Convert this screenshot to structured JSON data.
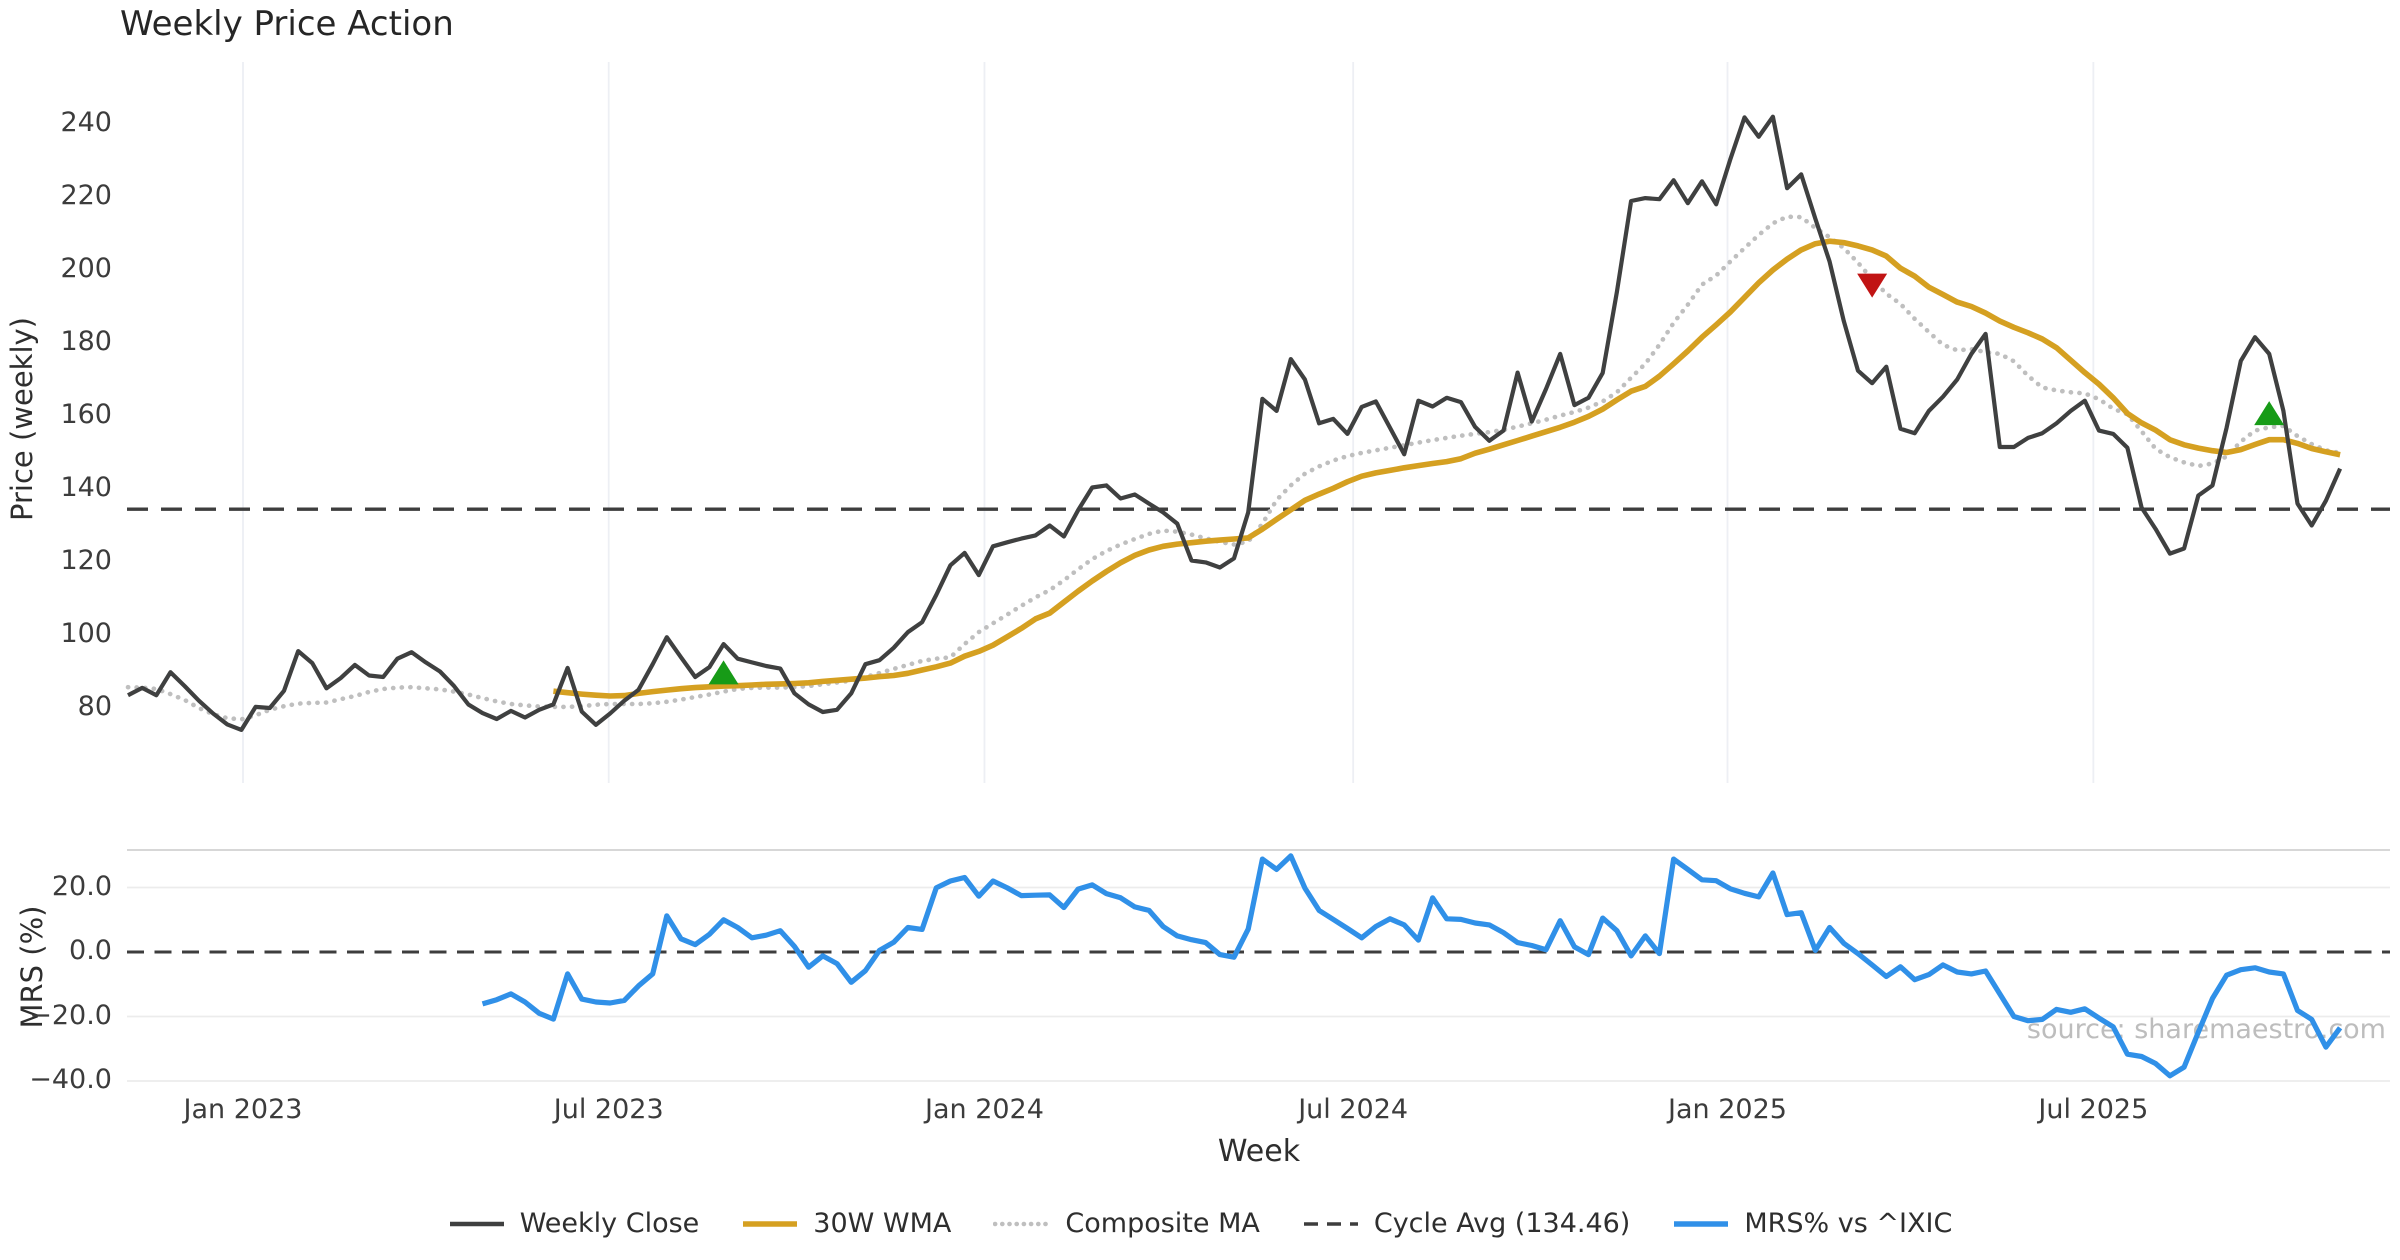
{
  "title": "Weekly Price Action",
  "source_text": "source: sharemaestro.com",
  "colors": {
    "close": "#3f4040",
    "wma": "#d5a021",
    "composite": "#bfbfbf",
    "cycle": "#3d3d3d",
    "mrs": "#3090e8",
    "grid_vertical": "#edeff4",
    "grid_horizontal": "#ececec",
    "panel_spine": "#d7d7d7",
    "marker_up": "#179b17",
    "marker_down": "#c11414",
    "text": "#3c3c3c",
    "source": "#bdbdbd"
  },
  "x_axis": {
    "label": "Week",
    "ticks": [
      {
        "label": "Jan 2023",
        "pos": 8.11
      },
      {
        "label": "Jul 2023",
        "pos": 33.9
      },
      {
        "label": "Jan 2024",
        "pos": 60.4
      },
      {
        "label": "Jul 2024",
        "pos": 86.4
      },
      {
        "label": "Jan 2025",
        "pos": 112.8
      },
      {
        "label": "Jul 2025",
        "pos": 138.6
      }
    ]
  },
  "chart_data": [
    {
      "type": "line",
      "panel": "price",
      "title": "Weekly Price Action",
      "xlabel": "Week",
      "ylabel": "Price (weekly)",
      "ylim": [
        60,
        247
      ],
      "yticks": [
        240,
        220,
        200,
        180,
        160,
        140,
        120,
        100,
        80
      ],
      "grid": "vertical-only",
      "cycle_avg": 134.46,
      "series": [
        {
          "name": "Weekly Close",
          "style": "solid",
          "color": "#3f4040",
          "values": [
            83.5,
            85.5,
            83.5,
            89.8,
            86,
            82,
            78.5,
            75.5,
            74,
            80.3,
            80,
            84.7,
            95.6,
            92.3,
            85.4,
            88.2,
            91.8,
            88.9,
            88.5,
            93.5,
            95.3,
            92.5,
            90,
            86,
            81,
            78.6,
            77,
            79.2,
            77.4,
            79.5,
            81,
            91,
            79,
            75.4,
            78.5,
            82,
            85,
            92,
            99.4,
            93.9,
            88.5,
            91.2,
            97.5,
            93.5,
            92.5,
            91.5,
            90.8,
            84,
            81,
            78.9,
            79.5,
            84,
            92,
            93.1,
            96.5,
            100.8,
            103.5,
            111,
            119.1,
            122.5,
            116.4,
            124.3,
            125.4,
            126.4,
            127.3,
            130,
            127,
            134.2,
            140.4,
            141,
            137.4,
            138.5,
            136,
            133.6,
            130.5,
            120.4,
            119.9,
            118.5,
            121,
            133.6,
            164.7,
            161.4,
            175.6,
            170,
            158,
            159.2,
            155.1,
            162.5,
            164,
            156.8,
            149.5,
            164.2,
            162.6,
            165,
            163.8,
            157,
            153.2,
            156,
            171.9,
            158.5,
            167.4,
            177,
            163,
            165,
            171.8,
            194,
            218.9,
            219.7,
            219.4,
            224.6,
            218.3,
            224.3,
            218,
            230.3,
            241.8,
            236.5,
            242,
            222.4,
            226.2,
            214,
            202.3,
            186,
            172.4,
            169,
            173.5,
            156.5,
            155.3,
            161.4,
            165.3,
            170,
            177,
            182.5,
            151.5,
            151.5,
            154,
            155.3,
            158,
            161.4,
            164.2,
            156,
            155.1,
            151.3,
            134.9,
            129,
            122.3,
            123.7,
            138.2,
            141,
            156.8,
            175.1,
            181.6,
            177,
            161.4,
            136,
            130,
            136.8,
            145.6
          ]
        },
        {
          "name": "30W WMA",
          "style": "solid",
          "color": "#d5a021",
          "values": [
            null,
            null,
            null,
            null,
            null,
            null,
            null,
            null,
            null,
            null,
            null,
            null,
            null,
            null,
            null,
            null,
            null,
            null,
            null,
            null,
            null,
            null,
            null,
            null,
            null,
            null,
            null,
            null,
            null,
            null,
            84.6,
            84.2,
            83.8,
            83.5,
            83.3,
            83.4,
            84,
            84.5,
            84.9,
            85.3,
            85.6,
            85.8,
            86,
            86.1,
            86.3,
            86.5,
            86.6,
            86.7,
            86.9,
            87.3,
            87.6,
            87.9,
            88.2,
            88.6,
            88.9,
            89.5,
            90.4,
            91.3,
            92.3,
            94.2,
            95.5,
            97.2,
            99.5,
            101.8,
            104.4,
            106,
            109,
            112,
            114.8,
            117.4,
            119.8,
            121.8,
            123.3,
            124.3,
            124.9,
            125.3,
            125.7,
            126,
            126.3,
            126.6,
            129,
            131.7,
            134.3,
            136.9,
            138.6,
            140.2,
            142,
            143.5,
            144.4,
            145.1,
            145.8,
            146.4,
            147,
            147.5,
            148.3,
            149.8,
            150.9,
            152.1,
            153.3,
            154.5,
            155.7,
            156.9,
            158.3,
            159.9,
            161.9,
            164.4,
            166.8,
            168.1,
            170.9,
            174.3,
            177.8,
            181.6,
            185,
            188.5,
            192.5,
            196.5,
            200,
            203,
            205.5,
            207.2,
            207.9,
            207.5,
            206.6,
            205.5,
            203.8,
            200.5,
            198.3,
            195.3,
            193.3,
            191.2,
            190,
            188.2,
            186,
            184.3,
            182.8,
            181.1,
            178.7,
            175.3,
            171.9,
            168.7,
            165,
            160.7,
            158.1,
            156.1,
            153.5,
            152.1,
            151.2,
            150.5,
            150,
            150.8,
            152.2,
            153.5,
            153.5,
            152.5,
            151.1,
            150.2,
            149.4
          ]
        },
        {
          "name": "Composite MA",
          "style": "dotted",
          "color": "#bfbfbf",
          "values": [
            85.7,
            85.6,
            85.2,
            83.8,
            82.2,
            80,
            78.3,
            77.2,
            76.9,
            78,
            79.5,
            80.5,
            81.2,
            81.4,
            81.5,
            82.4,
            83.3,
            84.4,
            85.2,
            85.6,
            85.7,
            85.4,
            85.1,
            84.5,
            83.7,
            82.7,
            81.8,
            81.1,
            80.7,
            80.4,
            80.3,
            80.3,
            80.5,
            80.9,
            81.1,
            81.1,
            81.1,
            81.3,
            81.7,
            82.3,
            83,
            83.7,
            84.5,
            85.2,
            85.5,
            85.6,
            85.6,
            85.7,
            86,
            86.5,
            87,
            87.5,
            88.5,
            89.6,
            90.7,
            91.8,
            92.9,
            93.5,
            93.9,
            97.5,
            100.8,
            103.2,
            105.6,
            108,
            110.3,
            112.3,
            115,
            118,
            120.8,
            123,
            124.8,
            126.3,
            127.7,
            128.6,
            128.3,
            127.5,
            126.5,
            125.5,
            124.8,
            125.6,
            130.5,
            137,
            141,
            144.2,
            146.2,
            147.8,
            149,
            149.9,
            150.6,
            151.3,
            152,
            152.7,
            153.4,
            154,
            154.6,
            155.1,
            155.6,
            156.2,
            157.1,
            158,
            159,
            160.1,
            161.1,
            162.3,
            164,
            166.5,
            170.5,
            174.3,
            179.5,
            185.5,
            190.5,
            196,
            198.5,
            202.3,
            206,
            209.6,
            212.8,
            214.6,
            214.5,
            211.5,
            209,
            206,
            202,
            197.5,
            193.5,
            190.7,
            186.6,
            183,
            179.5,
            178,
            178.3,
            177.5,
            177,
            175,
            171,
            167.8,
            167,
            166.5,
            166.2,
            164.6,
            162,
            160.5,
            155.8,
            151,
            148.7,
            147.3,
            146.3,
            147,
            148.9,
            153,
            156,
            156.9,
            157.3,
            154.5,
            152.3,
            150.6,
            149.9
          ]
        },
        {
          "name": "Cycle Avg (134.46)",
          "style": "dashed",
          "color": "#3d3d3d",
          "constant": 134.46
        }
      ],
      "markers": [
        {
          "index": 42,
          "value": 89.5,
          "shape": "triangle-up",
          "color": "#179b17"
        },
        {
          "index": 123,
          "value": 196.0,
          "shape": "triangle-down",
          "color": "#c11414"
        },
        {
          "index": 151,
          "value": 160.5,
          "shape": "triangle-up",
          "color": "#179b17"
        }
      ]
    },
    {
      "type": "line",
      "panel": "mrs",
      "ylabel": "MRS (%)",
      "ylim": [
        -41.5,
        31.6
      ],
      "yticks": [
        20.0,
        0.0,
        -20.0,
        -40.0
      ],
      "ytick_labels": [
        "20.0",
        "0.0",
        "−20.0",
        "−40.0"
      ],
      "grid": "horizontal-only",
      "zero_line_dashed": true,
      "series": [
        {
          "name": "MRS% vs ^IXIC",
          "style": "solid",
          "color": "#3090e8",
          "values": [
            null,
            null,
            null,
            null,
            null,
            null,
            null,
            null,
            null,
            null,
            null,
            null,
            null,
            null,
            null,
            null,
            null,
            null,
            null,
            null,
            null,
            null,
            null,
            null,
            null,
            -16.1,
            -14.8,
            -13,
            -15.5,
            -19,
            -20.8,
            -6.8,
            -14.6,
            -15.5,
            -15.8,
            -15,
            -10.5,
            -6.8,
            11.2,
            4.1,
            2.3,
            5.5,
            10,
            7.6,
            4.4,
            5.2,
            6.6,
            1.7,
            -4.7,
            -1.2,
            -3.6,
            -9.4,
            -5.8,
            0.5,
            3,
            7.6,
            7,
            19.9,
            22,
            23.1,
            17.3,
            22,
            19.9,
            17.5,
            17.6,
            17.7,
            13.8,
            19.5,
            20.8,
            18.1,
            16.8,
            14,
            12.9,
            7.9,
            5,
            3.8,
            2.9,
            -0.8,
            -1.6,
            7.1,
            28.8,
            25.6,
            29.8,
            19.8,
            12.9,
            10.1,
            7.3,
            4.4,
            7.9,
            10.3,
            8.4,
            3.7,
            16.8,
            10.3,
            10.1,
            9,
            8.4,
            6,
            2.9,
            2,
            0.7,
            9.7,
            1.6,
            -0.8,
            10.5,
            6.6,
            -1.2,
            5,
            -0.5,
            28.8,
            25.6,
            22.4,
            22.1,
            19.6,
            18.2,
            17.1,
            24.5,
            11.6,
            12.2,
            0.5,
            7.6,
            2.7,
            -0.5,
            -4,
            -7.6,
            -4.6,
            -8.6,
            -7,
            -4,
            -6.2,
            -6.8,
            -5.9,
            -13,
            -20,
            -21.3,
            -20.9,
            -17.8,
            -18.7,
            -17.6,
            -20.5,
            -23.2,
            -31.7,
            -32.4,
            -34.6,
            -38.4,
            -35.7,
            -24.9,
            -14.4,
            -7.2,
            -5.5,
            -4.9,
            -6.2,
            -6.8,
            -18.1,
            -20.9,
            -29.5,
            -23.5
          ]
        }
      ]
    }
  ],
  "legend": [
    {
      "label": "Weekly Close",
      "style": "solid",
      "color": "#3f4040",
      "width": 4.5
    },
    {
      "label": "30W WMA",
      "style": "solid",
      "color": "#d5a021",
      "width": 5.5
    },
    {
      "label": "Composite MA",
      "style": "dotted",
      "color": "#bfbfbf",
      "width": 4.5
    },
    {
      "label": "Cycle Avg (134.46)",
      "style": "dashed",
      "color": "#3d3d3d",
      "width": 3.4
    },
    {
      "label": "MRS% vs ^IXIC",
      "style": "solid",
      "color": "#3090e8",
      "width": 5.5
    }
  ]
}
